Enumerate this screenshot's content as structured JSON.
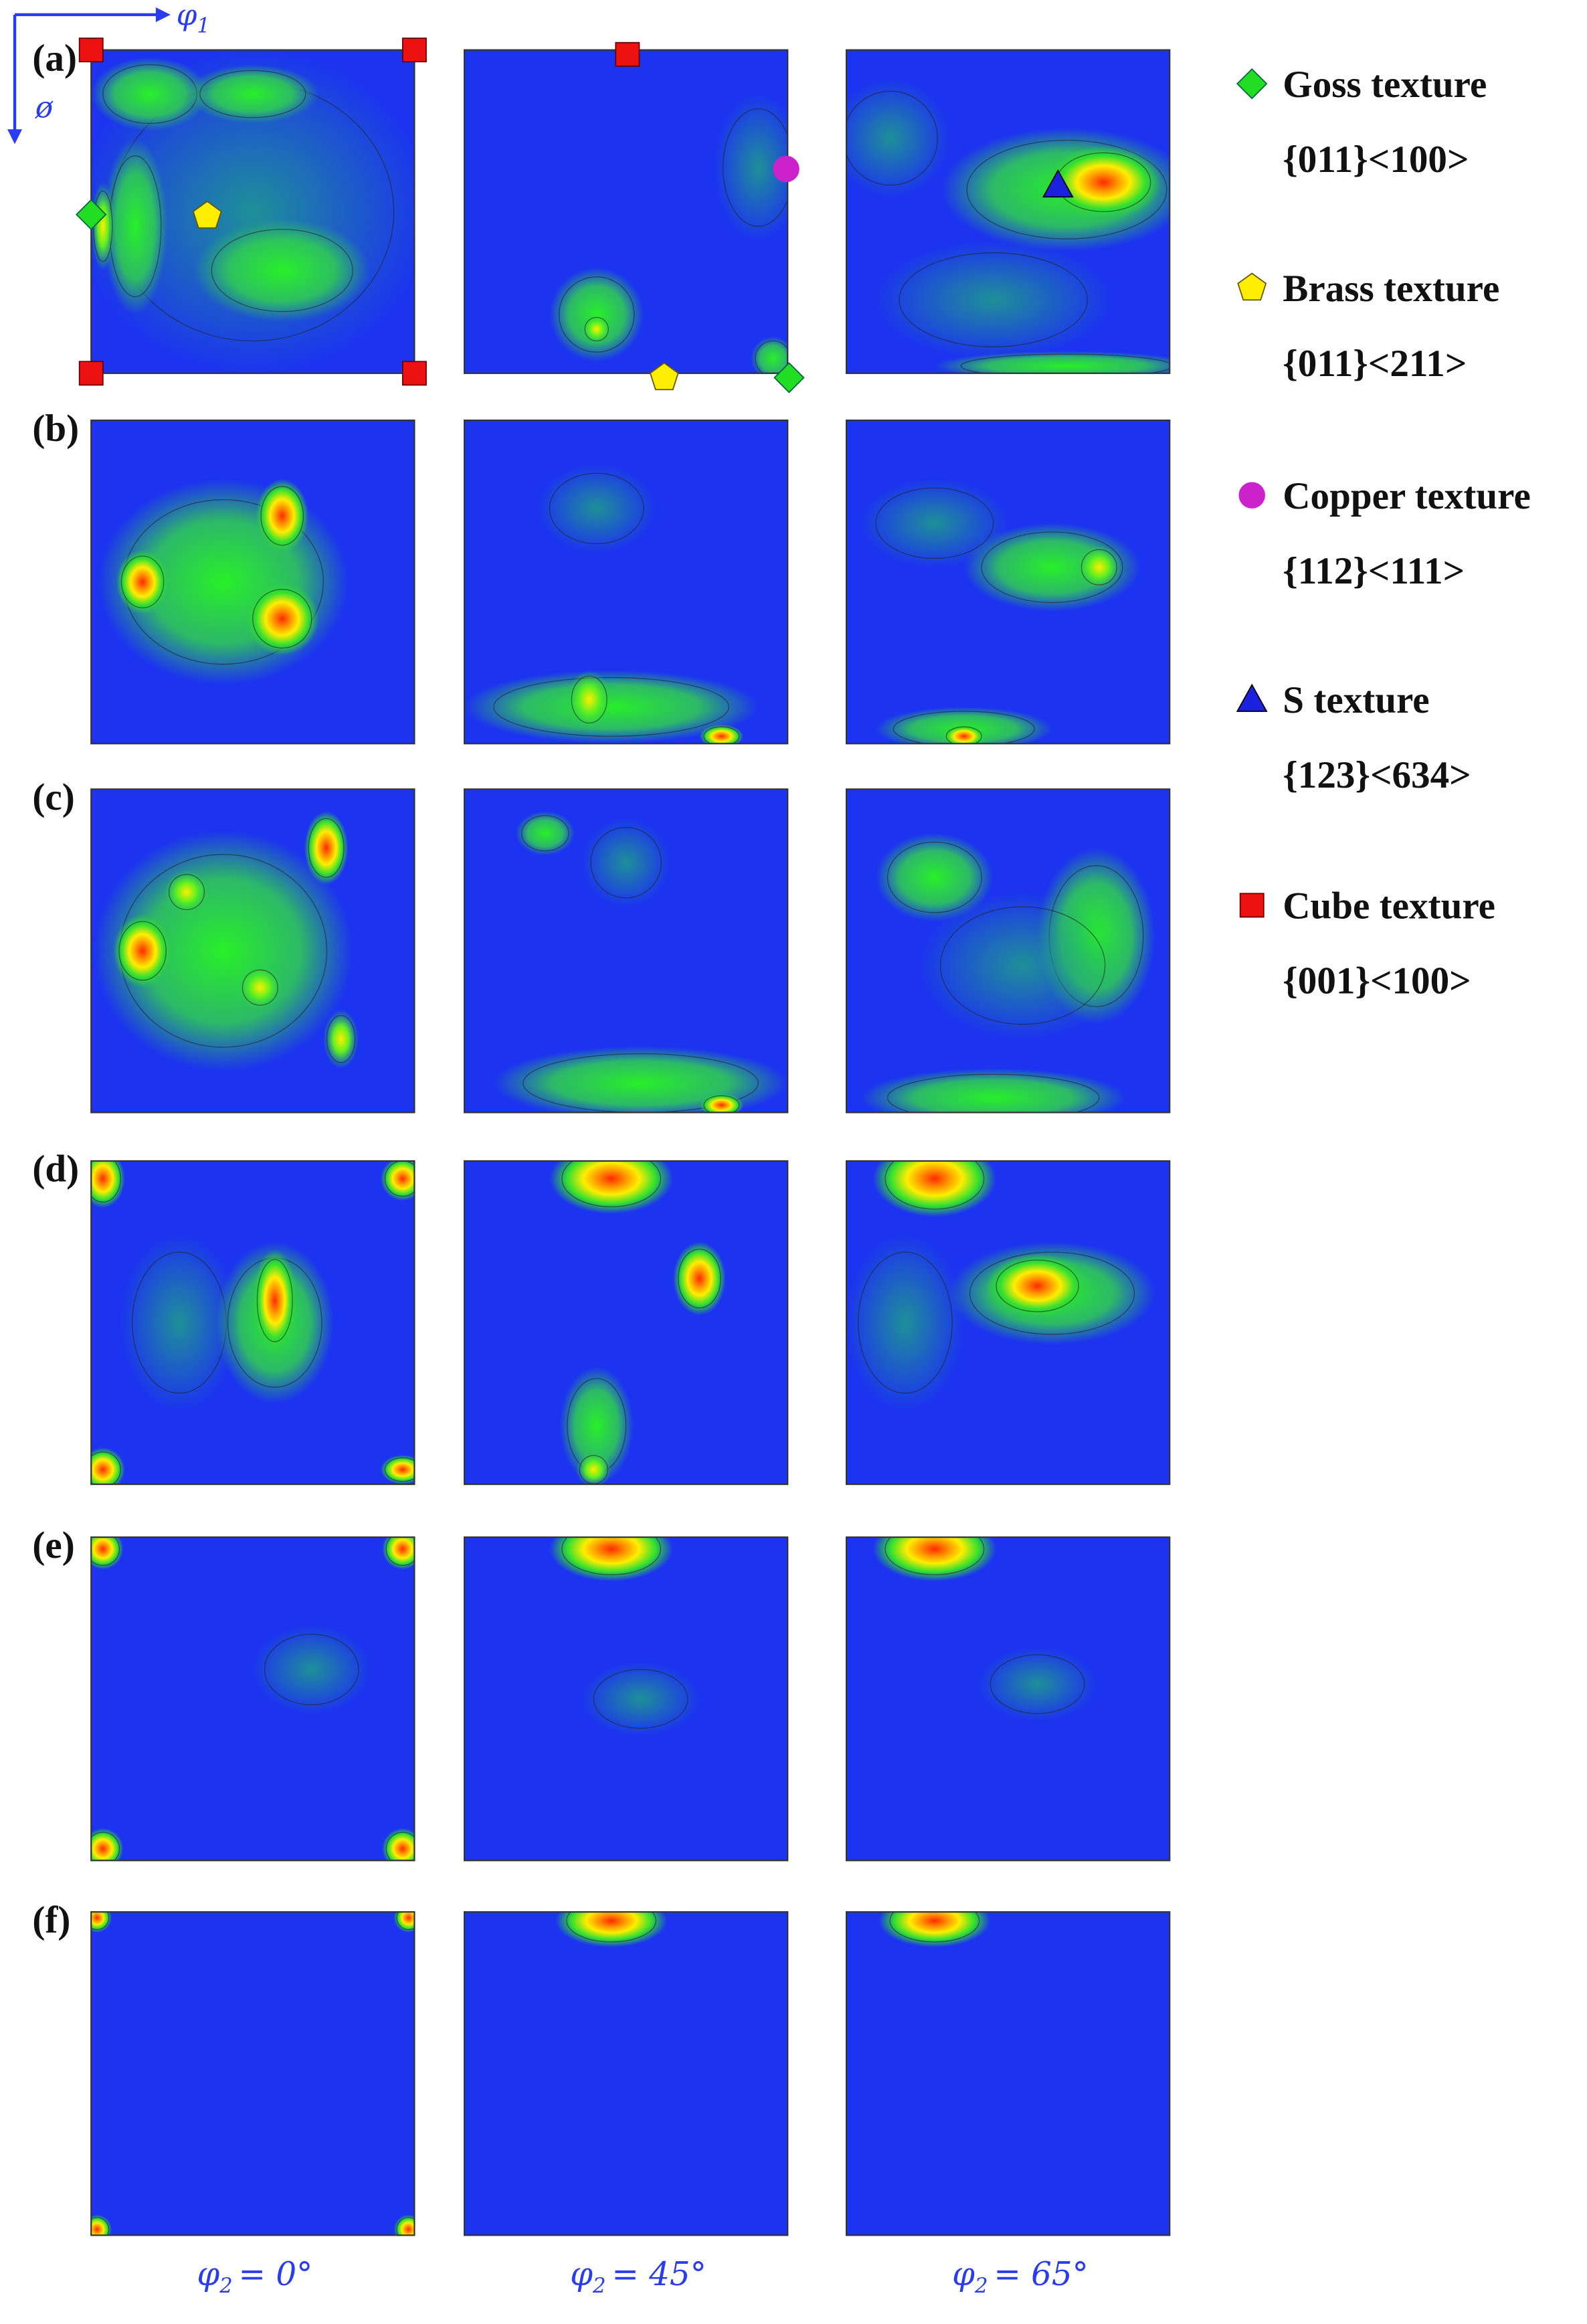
{
  "horizontal_axis": {
    "symbol": "φ",
    "subscript": "1"
  },
  "vertical_axis": "ø",
  "panel_labels": [
    "(a)",
    "(b)",
    "(c)",
    "(d)",
    "(e)",
    "(f)"
  ],
  "column_labels": [
    {
      "symbol": "φ",
      "subscript": "2",
      "text": "= 0°"
    },
    {
      "symbol": "φ",
      "subscript": "2",
      "text": "= 45°"
    },
    {
      "symbol": "φ",
      "subscript": "2",
      "text": "= 65°"
    }
  ],
  "legend": [
    {
      "name": "Goss texture",
      "indices": "{011}<100>"
    },
    {
      "name": "Brass texture",
      "indices": "{011}<211>"
    },
    {
      "name": "Copper texture",
      "indices": "{112}<111>"
    },
    {
      "name": "S texture",
      "indices": "{123}<634>"
    },
    {
      "name": "Cube texture",
      "indices": "{001}<100>"
    }
  ]
}
